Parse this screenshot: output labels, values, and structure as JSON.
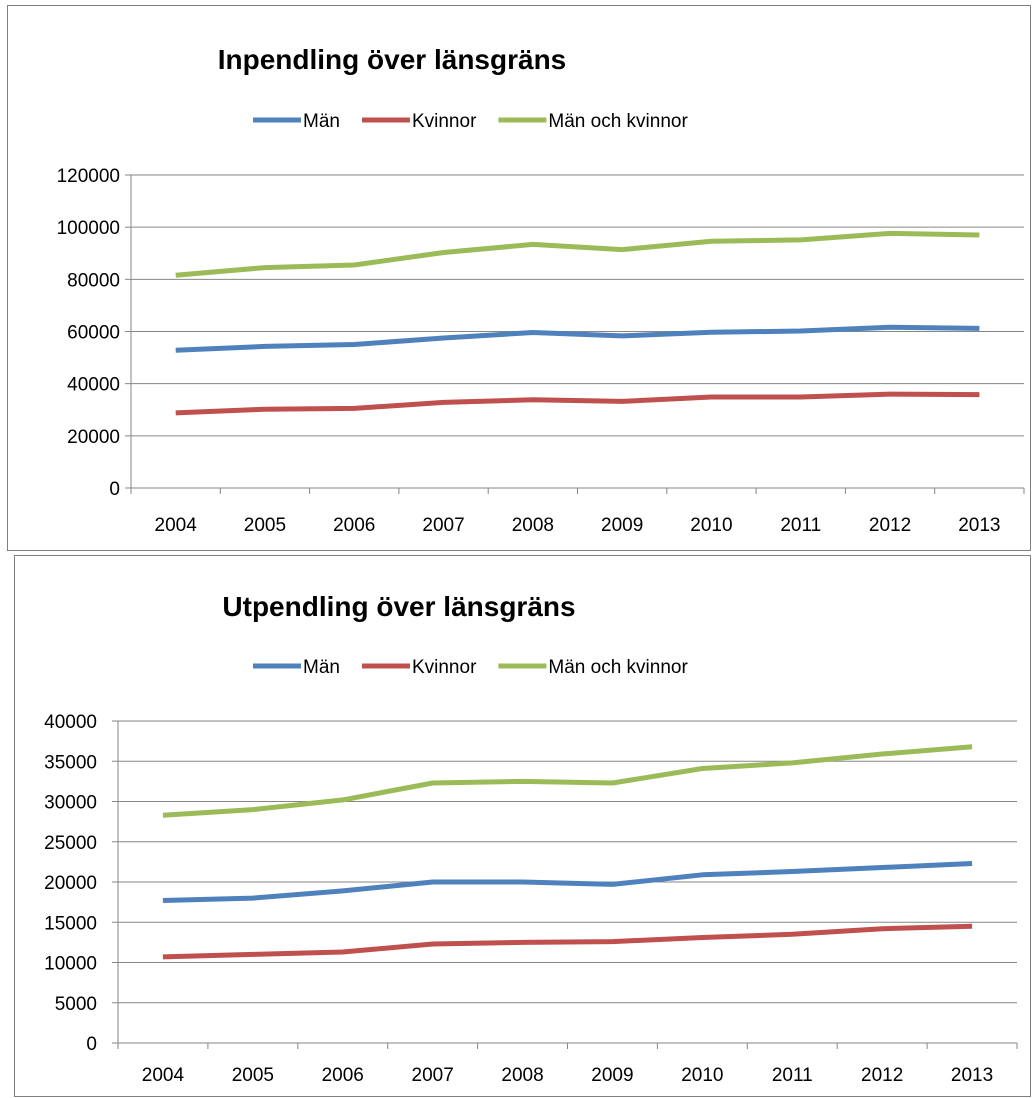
{
  "chart_data": [
    {
      "type": "line",
      "title": "Inpendling över länsgräns",
      "categories": [
        "2004",
        "2005",
        "2006",
        "2007",
        "2008",
        "2009",
        "2010",
        "2011",
        "2012",
        "2013"
      ],
      "ylim": [
        0,
        120000
      ],
      "yticks": [
        "0",
        "20000",
        "40000",
        "60000",
        "80000",
        "100000",
        "120000"
      ],
      "grid": true,
      "legend": "top",
      "series": [
        {
          "name": "Män",
          "color": "#4f81bd",
          "values": [
            52800,
            54300,
            55000,
            57500,
            59600,
            58300,
            59700,
            60200,
            61600,
            61200
          ]
        },
        {
          "name": "Kvinnor",
          "color": "#c0504d",
          "values": [
            28800,
            30200,
            30500,
            32800,
            33800,
            33200,
            34900,
            34900,
            36000,
            35800
          ]
        },
        {
          "name": "Män och kvinnor",
          "color": "#9bbb59",
          "values": [
            81600,
            84500,
            85500,
            90300,
            93400,
            91400,
            94600,
            95100,
            97600,
            97000
          ]
        }
      ]
    },
    {
      "type": "line",
      "title": "Utpendling över länsgräns",
      "categories": [
        "2004",
        "2005",
        "2006",
        "2007",
        "2008",
        "2009",
        "2010",
        "2011",
        "2012",
        "2013"
      ],
      "ylim": [
        0,
        40000
      ],
      "yticks": [
        "0",
        "5000",
        "10000",
        "15000",
        "20000",
        "25000",
        "30000",
        "35000",
        "40000"
      ],
      "grid": true,
      "legend": "top",
      "series": [
        {
          "name": "Män",
          "color": "#4f81bd",
          "values": [
            17700,
            18000,
            18900,
            20000,
            20000,
            19700,
            20900,
            21300,
            21800,
            22300
          ]
        },
        {
          "name": "Kvinnor",
          "color": "#c0504d",
          "values": [
            10700,
            11000,
            11300,
            12300,
            12500,
            12600,
            13100,
            13500,
            14200,
            14500
          ]
        },
        {
          "name": "Män och kvinnor",
          "color": "#9bbb59",
          "values": [
            28300,
            29000,
            30200,
            32300,
            32500,
            32300,
            34100,
            34800,
            35900,
            36800
          ]
        }
      ]
    }
  ]
}
